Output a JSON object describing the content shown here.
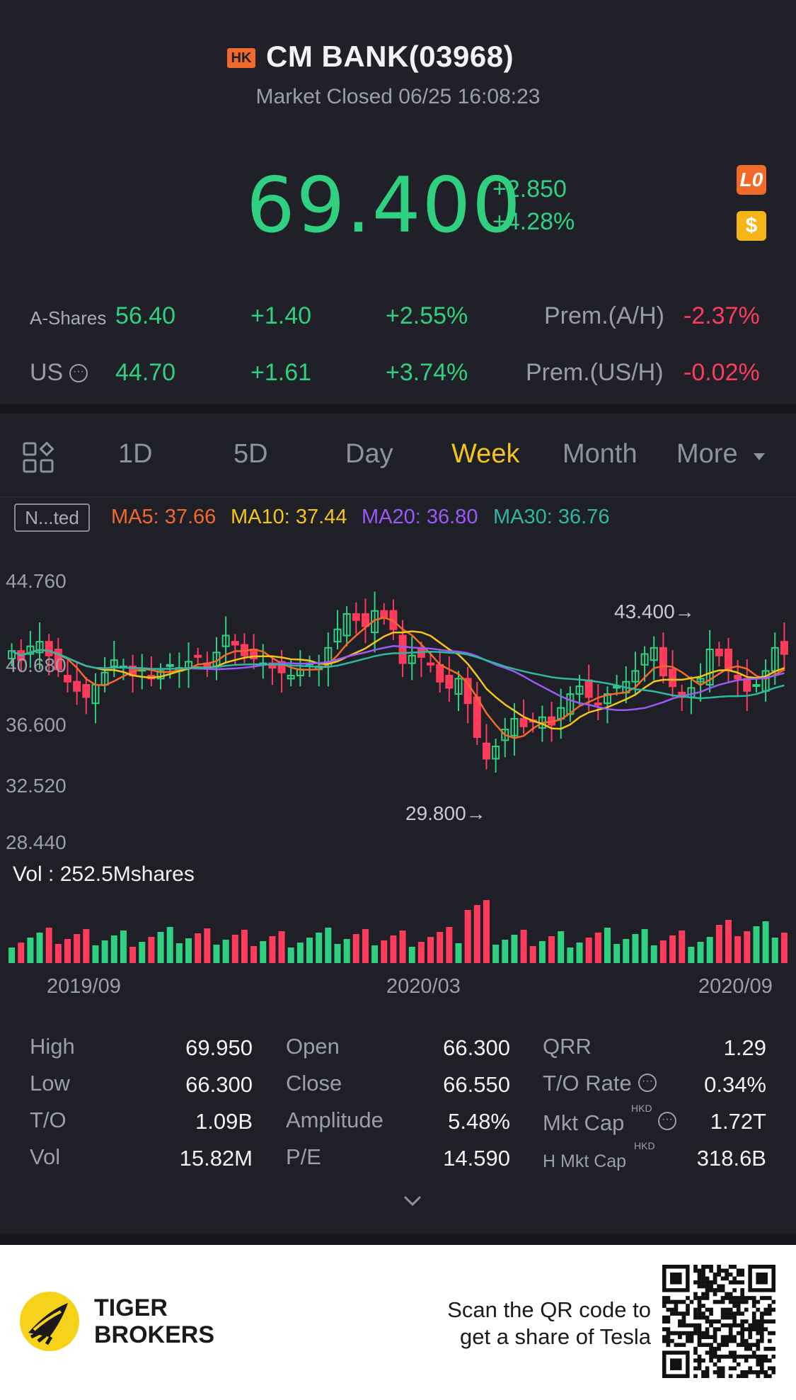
{
  "header": {
    "exchange_badge": "HK",
    "title": "CM BANK(03968)",
    "status": "Market Closed 06/25 16:08:23",
    "price": "69.400",
    "change_abs": "+2.850",
    "change_pct": "+4.28%",
    "badges": [
      "L0",
      "$"
    ]
  },
  "related": {
    "a_shares": {
      "label": "A-Shares",
      "price": "56.40",
      "change": "+1.40",
      "pct": "+2.55%",
      "prem_label": "Prem.(A/H)",
      "prem": "-2.37%"
    },
    "us": {
      "label": "US",
      "price": "44.70",
      "change": "+1.61",
      "pct": "+3.74%",
      "prem_label": "Prem.(US/H)",
      "prem": "-0.02%"
    }
  },
  "tabs": [
    {
      "label": "1D",
      "active": false
    },
    {
      "label": "5D",
      "active": false
    },
    {
      "label": "Day",
      "active": false
    },
    {
      "label": "Week",
      "active": true
    },
    {
      "label": "Month",
      "active": false
    },
    {
      "label": "More",
      "active": false
    }
  ],
  "indicators": {
    "mode": "N...ted",
    "ma5": "MA5: 37.66",
    "ma10": "MA10: 37.44",
    "ma20": "MA20: 36.80",
    "ma30": "MA30: 36.76",
    "colors": {
      "ma5": "#f26a2a",
      "ma10": "#f5c418",
      "ma20": "#9b59f5",
      "ma30": "#2fb8a0",
      "up": "#2fd07f",
      "down": "#ff3b5c"
    }
  },
  "chart": {
    "y_ticks": [
      "44.760",
      "40.680",
      "36.600",
      "32.520",
      "28.440"
    ],
    "high_marker": "43.400→",
    "low_marker": "29.800→",
    "volume_label": "Vol  : 252.5Mshares",
    "dates": [
      "2019/09",
      "2020/03",
      "2020/09"
    ]
  },
  "chart_data": {
    "type": "candlestick",
    "ylim": [
      28.44,
      44.76
    ],
    "y_ticks": [
      44.76,
      40.68,
      36.6,
      32.52,
      28.44
    ],
    "x_ticks": [
      "2019/09",
      "2020/03",
      "2020/09"
    ],
    "high": 43.4,
    "low": 29.8,
    "ma": {
      "MA5": 37.66,
      "MA10": 37.44,
      "MA20": 36.8,
      "MA30": 36.76
    },
    "volume_last": "252.5Mshares"
  },
  "stats": [
    {
      "label": "High",
      "value": "69.950"
    },
    {
      "label": "Open",
      "value": "66.300"
    },
    {
      "label": "QRR",
      "value": "1.29"
    },
    {
      "label": "Low",
      "value": "66.300"
    },
    {
      "label": "Close",
      "value": "66.550"
    },
    {
      "label": "T/O Rate",
      "value": "0.34%"
    },
    {
      "label": "T/O",
      "value": "1.09B"
    },
    {
      "label": "Amplitude",
      "value": "5.48%"
    },
    {
      "label": "Mkt Cap",
      "value": "1.72T"
    },
    {
      "label": "Vol",
      "value": "15.82M"
    },
    {
      "label": "P/E",
      "value": "14.590"
    },
    {
      "label": "H Mkt Cap",
      "value": "318.6B"
    }
  ],
  "currency_sup": "HKD",
  "footer": {
    "brand_line1": "TIGER",
    "brand_line2": "BROKERS",
    "scan_line1": "Scan the QR code to",
    "scan_line2": "get a share of Tesla"
  }
}
